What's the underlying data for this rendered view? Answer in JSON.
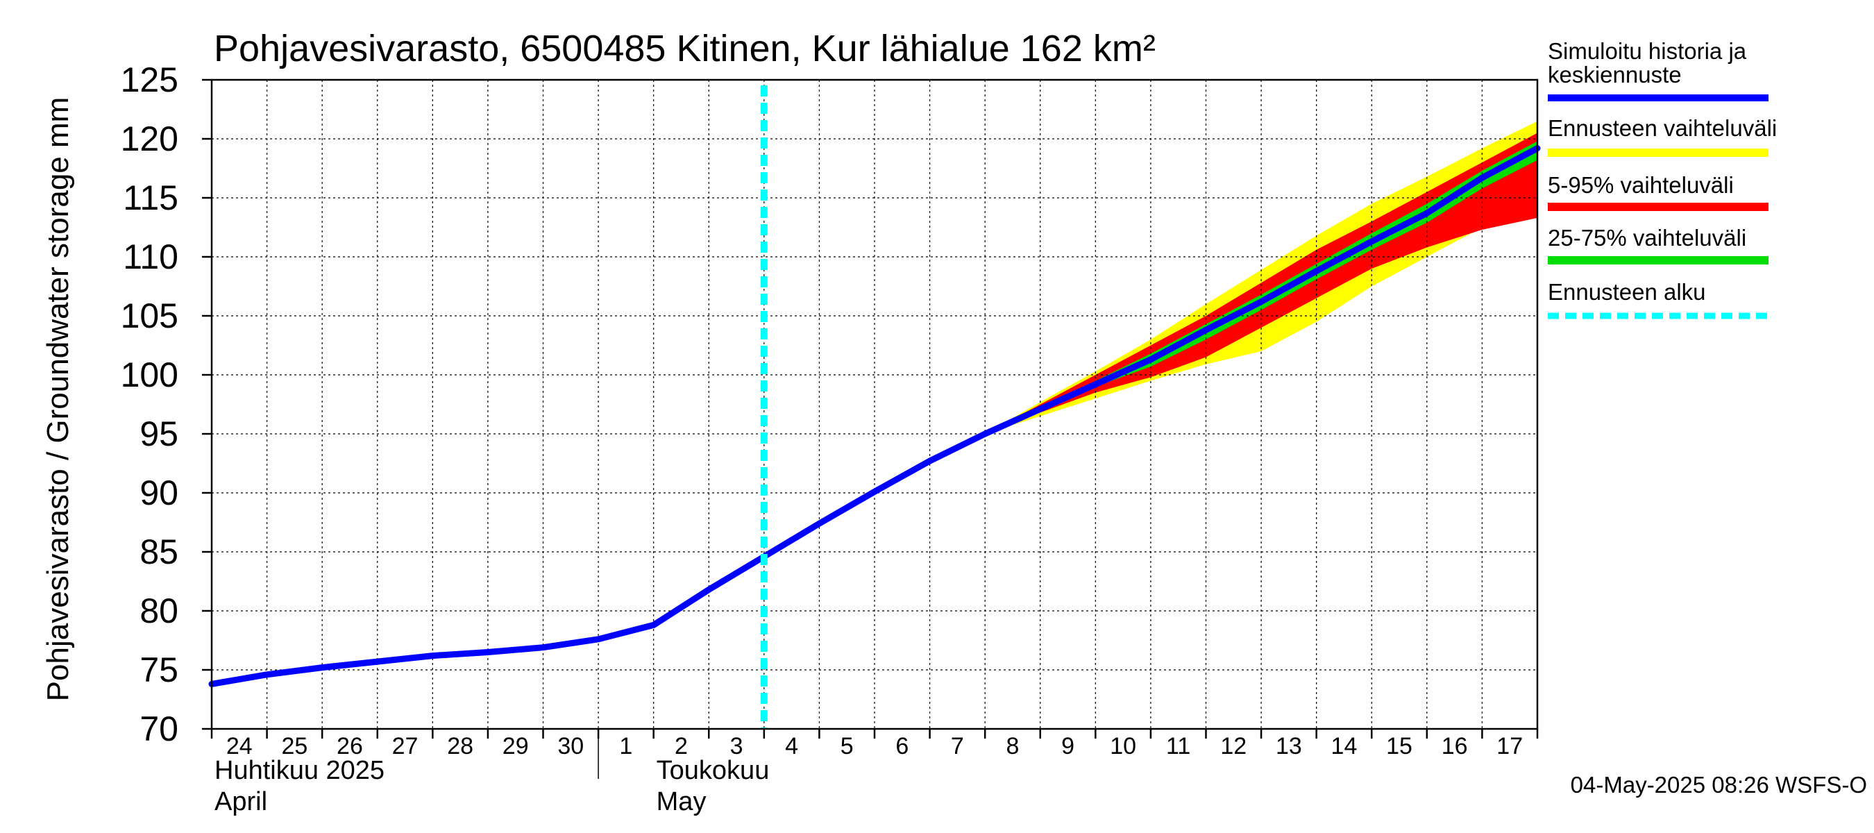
{
  "chart_data": {
    "type": "area",
    "title": "Pohjavesivarasto, 6500485 Kitinen, Kur lähialue 162 km²",
    "ylabel": "Pohjavesivarasto / Groundwater storage   mm",
    "ylim": [
      70,
      125
    ],
    "yticks": [
      "70",
      "75",
      "80",
      "85",
      "90",
      "95",
      "100",
      "105",
      "110",
      "115",
      "120",
      "125"
    ],
    "xlim": [
      0,
      24
    ],
    "x_tick_labels": [
      "24",
      "25",
      "26",
      "27",
      "28",
      "29",
      "30",
      "1",
      "2",
      "3",
      "4",
      "5",
      "6",
      "7",
      "8",
      "9",
      "10",
      "11",
      "12",
      "13",
      "14",
      "15",
      "16",
      "17"
    ],
    "month_labels": [
      {
        "line1": "Huhtikuu  2025",
        "line2": "April",
        "x": 0
      },
      {
        "line1": "Toukokuu",
        "line2": "May",
        "x": 8
      }
    ],
    "month_separator_x": 7,
    "grid": true,
    "forecast_start_x": 10,
    "series": [
      {
        "name": "Simuloitu historia ja keskiennuste",
        "color": "#0000ff",
        "x": [
          0,
          1,
          2,
          3,
          4,
          5,
          6,
          7,
          8,
          9,
          10,
          11,
          12,
          13,
          14,
          15,
          16,
          17,
          18,
          19,
          20,
          21,
          22,
          23,
          24
        ],
        "y": [
          73.8,
          74.6,
          75.2,
          75.7,
          76.2,
          76.5,
          76.9,
          77.6,
          78.8,
          81.8,
          84.6,
          87.4,
          90.1,
          92.7,
          95.0,
          97.1,
          99.2,
          101.3,
          103.8,
          106.2,
          108.8,
          111.3,
          113.7,
          116.7,
          119.2
        ]
      }
    ],
    "bands": [
      {
        "name": "Ennusteen vaihteluväli",
        "color": "#ffff00",
        "x": [
          14,
          15,
          16,
          17,
          18,
          19,
          20,
          21,
          22,
          23,
          24
        ],
        "upper": [
          95.0,
          97.7,
          100.3,
          103.0,
          106.0,
          108.9,
          111.8,
          114.5,
          116.8,
          119.2,
          121.5
        ],
        "lower": [
          95.0,
          96.5,
          98.0,
          99.5,
          100.9,
          102.0,
          104.5,
          107.5,
          110.0,
          112.5,
          113.8
        ]
      },
      {
        "name": "5-95% vaihteluväli",
        "color": "#ff0000",
        "x": [
          14,
          15,
          16,
          17,
          18,
          19,
          20,
          21,
          22,
          23,
          24
        ],
        "upper": [
          95.0,
          97.5,
          100.0,
          102.5,
          105.0,
          107.8,
          110.6,
          113.0,
          115.5,
          118.0,
          120.5
        ],
        "lower": [
          95.0,
          96.8,
          98.5,
          99.8,
          101.5,
          104.0,
          106.5,
          109.0,
          110.8,
          112.3,
          113.3
        ]
      },
      {
        "name": "25-75% vaihteluväli",
        "color": "#00dd00",
        "x": [
          14,
          15,
          16,
          17,
          18,
          19,
          20,
          21,
          22,
          23,
          24
        ],
        "upper": [
          95.0,
          97.2,
          99.5,
          101.8,
          104.3,
          106.8,
          109.4,
          112.0,
          114.5,
          117.3,
          119.8
        ],
        "lower": [
          95.0,
          97.0,
          99.0,
          100.7,
          103.0,
          105.5,
          108.1,
          110.6,
          112.9,
          115.8,
          118.2
        ]
      }
    ],
    "forecast_start_legend": {
      "name": "Ennusteen alku",
      "color": "#00ffff"
    },
    "timestamp": "04-May-2025 08:26 WSFS-O"
  }
}
